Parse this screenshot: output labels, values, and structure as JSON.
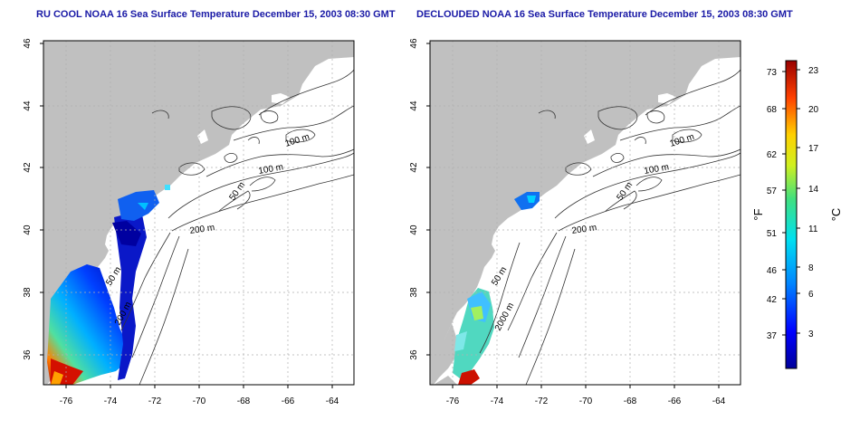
{
  "left_panel": {
    "title": "RU COOL NOAA 16 Sea Surface Temperature December 15, 2003 08:30 GMT",
    "contour_labels": [
      "100 m",
      "100 m",
      "50 m",
      "200 m",
      "50 m",
      "200 m"
    ]
  },
  "right_panel": {
    "title": "DECLOUDED NOAA 16 Sea Surface Temperature December 15, 2003 08:30 GMT",
    "contour_labels": [
      "100 m",
      "100 m",
      "50 m",
      "200 m",
      "50 m",
      "2000 m"
    ]
  },
  "axes": {
    "x_ticks": [
      "-76",
      "-74",
      "-72",
      "-70",
      "-68",
      "-66",
      "-64"
    ],
    "y_ticks": [
      "46",
      "44",
      "42",
      "40",
      "38",
      "36"
    ]
  },
  "colorbar": {
    "f_label": "°F",
    "c_label": "°C",
    "f_ticks": [
      "73",
      "68",
      "62",
      "57",
      "51",
      "46",
      "42",
      "37"
    ],
    "c_ticks": [
      "23",
      "20",
      "17",
      "14",
      "11",
      "8",
      "6",
      "3"
    ]
  },
  "colors": {
    "title": "#1a1aa6",
    "land": "#c0c0c0",
    "ocean": "#ffffff",
    "grid": "#b0b0b0",
    "sst_cold": "#000099",
    "sst_hot": "#990000"
  }
}
